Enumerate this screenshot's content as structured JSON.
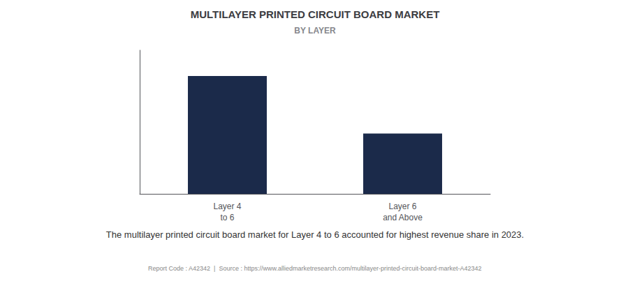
{
  "chart_data": {
    "type": "bar",
    "title": "MULTILAYER PRINTED CIRCUIT BOARD MARKET",
    "subtitle": "BY LAYER",
    "categories": [
      "Layer 4\nto 6",
      "Layer 6\nand Above"
    ],
    "values": [
      0.82,
      0.42
    ],
    "color": "#1b2a4a",
    "ylim": [
      0,
      1.0
    ],
    "tick_labels": "x",
    "grid": false,
    "annotations": [
      "The multilayer printed circuit board market for Layer 4 to 6 accounted for highest revenue share in 2023.",
      "Report Code : A42342  |  Source : https://www.alliedmarketresearch.com/multilayer-printed-circuit-board-market-A42342"
    ]
  }
}
